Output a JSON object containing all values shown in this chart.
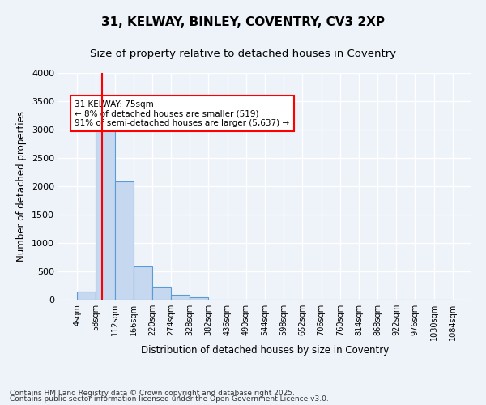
{
  "title_line1": "31, KELWAY, BINLEY, COVENTRY, CV3 2XP",
  "title_line2": "Size of property relative to detached houses in Coventry",
  "xlabel": "Distribution of detached houses by size in Coventry",
  "ylabel": "Number of detached properties",
  "bins": [
    4,
    58,
    112,
    166,
    220,
    274,
    328,
    382,
    436,
    490,
    544,
    598,
    652,
    706,
    760,
    814,
    868,
    922,
    976,
    1030,
    1084
  ],
  "counts": [
    150,
    3100,
    2080,
    580,
    230,
    90,
    50,
    0,
    0,
    0,
    0,
    0,
    0,
    0,
    0,
    0,
    0,
    0,
    0,
    0
  ],
  "bar_color": "#c5d8f0",
  "bar_edge_color": "#5b9bd5",
  "red_line_x": 75,
  "annotation_text": "31 KELWAY: 75sqm\n← 8% of detached houses are smaller (519)\n91% of semi-detached houses are larger (5,637) →",
  "annotation_box_color": "white",
  "annotation_box_edge": "red",
  "ylim": [
    0,
    4000
  ],
  "yticks": [
    0,
    500,
    1000,
    1500,
    2000,
    2500,
    3000,
    3500,
    4000
  ],
  "footer_line1": "Contains HM Land Registry data © Crown copyright and database right 2025.",
  "footer_line2": "Contains public sector information licensed under the Open Government Licence v3.0.",
  "bg_color": "#eef2f9",
  "plot_bg_color": "#eef2f9",
  "grid_color": "white",
  "title_fontsize": 11,
  "subtitle_fontsize": 9.5,
  "tick_label_fontsize": 7,
  "axis_label_fontsize": 8.5,
  "footer_fontsize": 6.5
}
